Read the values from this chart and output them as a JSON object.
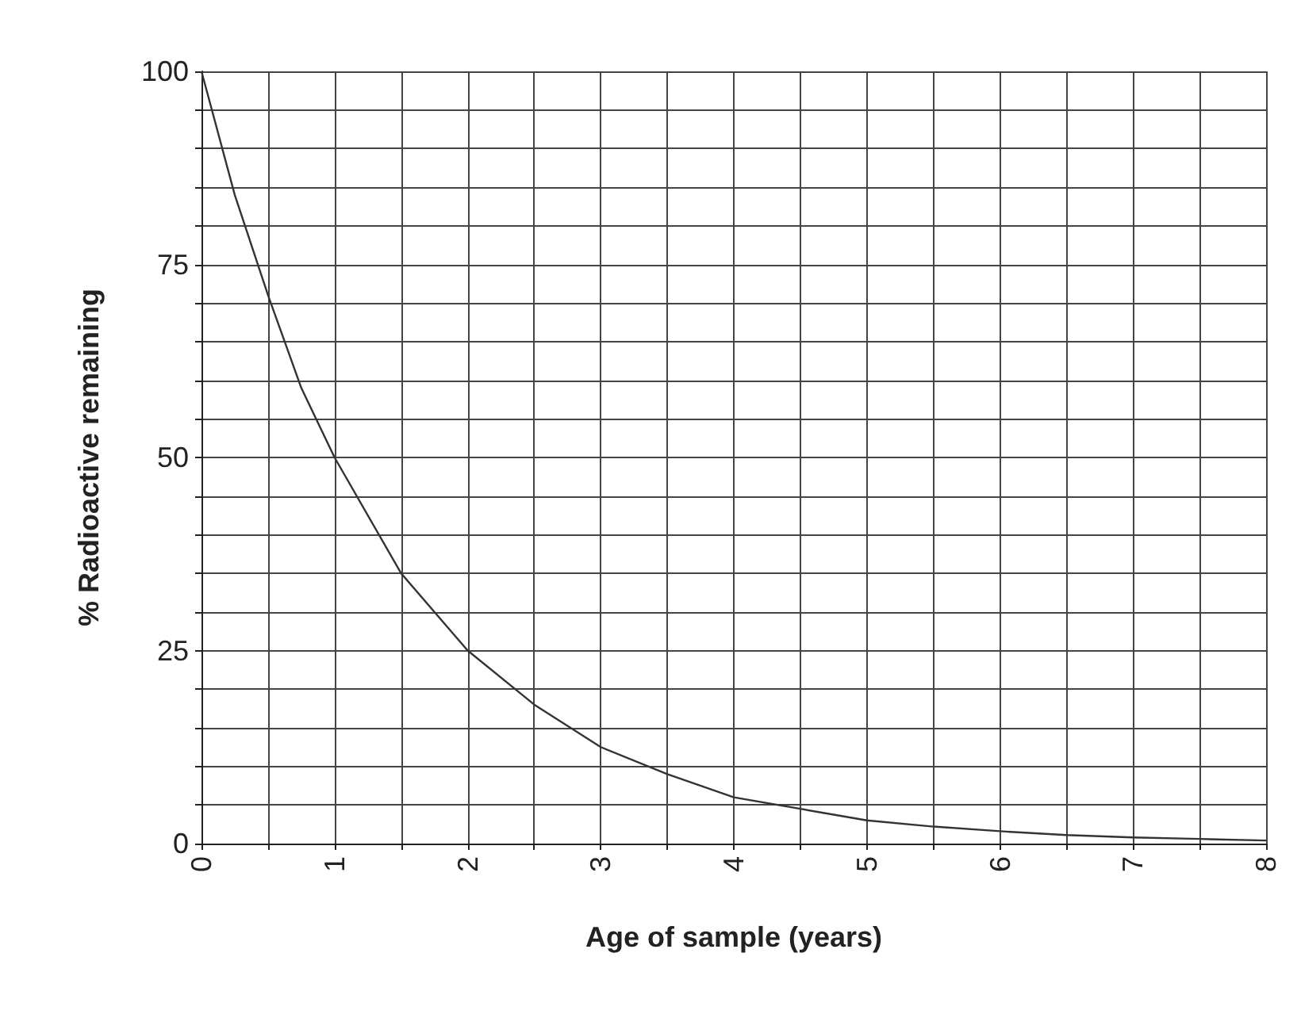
{
  "chart_data": {
    "type": "line",
    "xlabel": "Age of sample (years)",
    "ylabel": "% Radioactive remaining",
    "x": [
      0,
      0.25,
      0.5,
      0.75,
      1,
      1.5,
      2,
      2.5,
      3,
      3.5,
      4,
      4.5,
      5,
      5.5,
      6,
      6.5,
      7,
      7.5,
      8
    ],
    "series": [
      {
        "color": "#333333",
        "values": [
          100,
          84,
          71,
          59,
          50,
          35,
          25,
          18,
          12.5,
          9,
          6,
          4.5,
          3,
          2.2,
          1.6,
          1.1,
          0.8,
          0.6,
          0.4
        ]
      }
    ],
    "xlim": [
      0,
      8
    ],
    "xticks": [
      0,
      {
        "value": 0.5,
        "label": null
      },
      1,
      {
        "value": 1.5,
        "label": null
      },
      2,
      {
        "value": 2.5,
        "label": null
      },
      3,
      {
        "value": 3.5,
        "label": null
      },
      4,
      {
        "value": 4.5,
        "label": null
      },
      5,
      {
        "value": 5.5,
        "label": null
      },
      6,
      {
        "value": 6.5,
        "label": null
      },
      7,
      {
        "value": 7.5,
        "label": null
      },
      8
    ],
    "ylim": [
      0,
      100
    ],
    "yticks": [
      0,
      {
        "value": 5,
        "label": null
      },
      {
        "value": 10,
        "label": null
      },
      {
        "value": 15,
        "label": null
      },
      {
        "value": 20,
        "label": null
      },
      25,
      {
        "value": 30,
        "label": null
      },
      {
        "value": 35,
        "label": null
      },
      {
        "value": 40,
        "label": null
      },
      {
        "value": 45,
        "label": null
      },
      50,
      {
        "value": 55,
        "label": null
      },
      {
        "value": 60,
        "label": null
      },
      {
        "value": 65,
        "label": null
      },
      {
        "value": 70,
        "label": null
      },
      75,
      {
        "value": 80,
        "label": null
      },
      {
        "value": 85,
        "label": null
      },
      {
        "value": 90,
        "label": null
      },
      {
        "value": 95,
        "label": null
      },
      100
    ],
    "grid": true,
    "marker": "none",
    "line_style": "solid"
  }
}
